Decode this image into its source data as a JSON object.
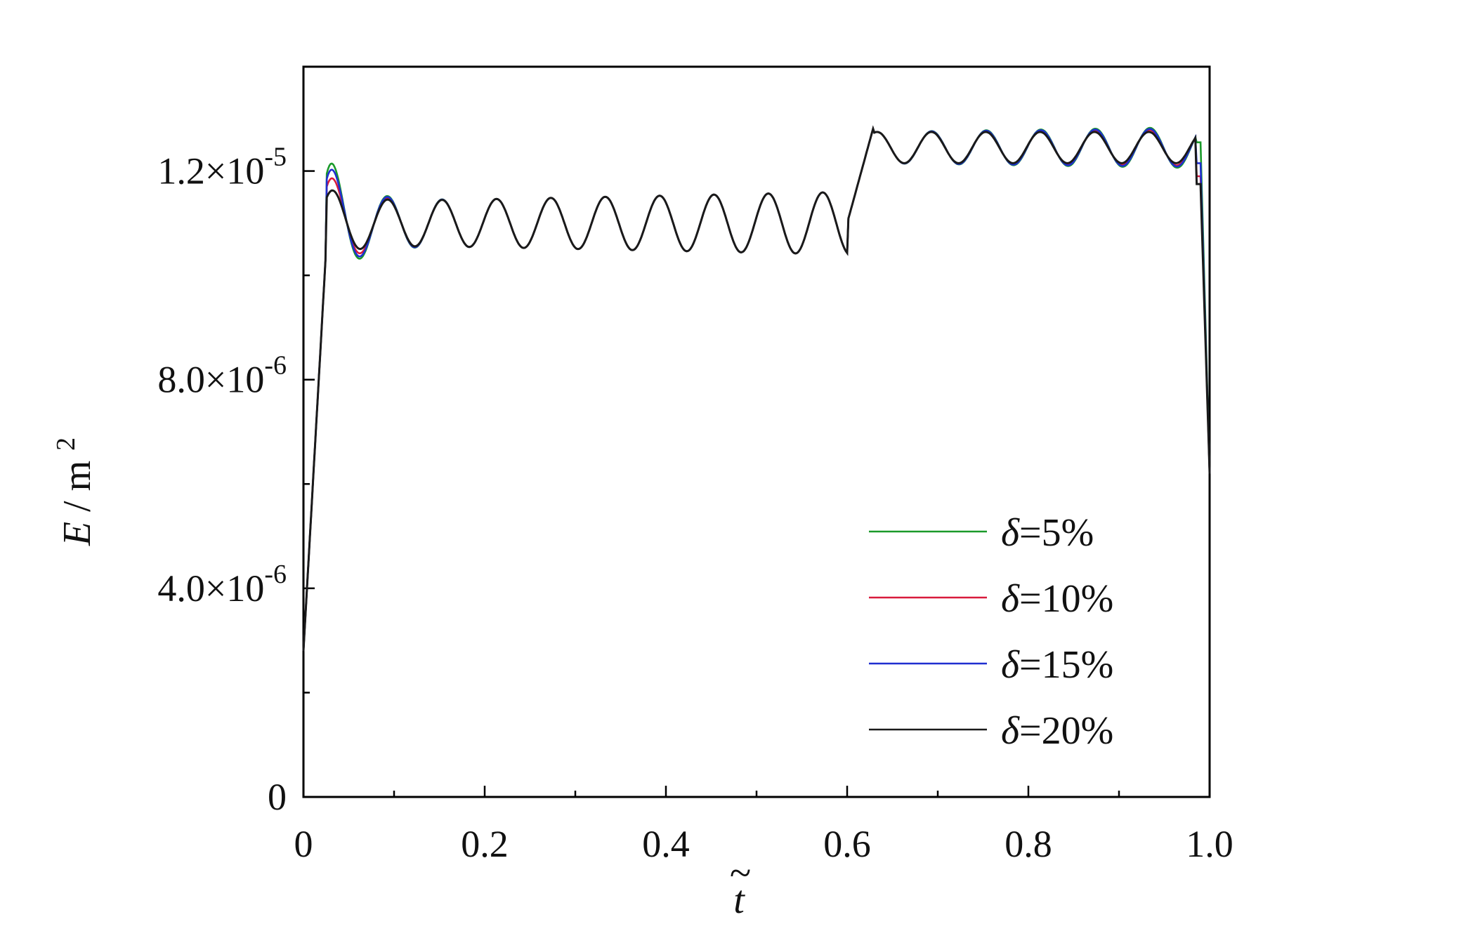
{
  "chart_data": {
    "type": "line",
    "xlabel": "t",
    "xlabel_accent": "~",
    "ylabel": "E",
    "ylabel_unit": "m",
    "ylabel_unit_exp": "2",
    "xlim": [
      0,
      1.0
    ],
    "ylim": [
      0,
      1.4e-05
    ],
    "grid": false,
    "legend_position": "bottom-right",
    "x_ticks": [
      {
        "value": 0,
        "label": "0"
      },
      {
        "value": 0.2,
        "label": "0.2"
      },
      {
        "value": 0.4,
        "label": "0.4"
      },
      {
        "value": 0.6,
        "label": "0.6"
      },
      {
        "value": 0.8,
        "label": "0.8"
      },
      {
        "value": 1.0,
        "label": "1.0"
      }
    ],
    "y_ticks": [
      {
        "value": 0,
        "mantissa": "0",
        "exp": ""
      },
      {
        "value": 4e-06,
        "mantissa": "4.0",
        "exp": "-6"
      },
      {
        "value": 8e-06,
        "mantissa": "8.0",
        "exp": "-6"
      },
      {
        "value": 1.2e-05,
        "mantissa": "1.2",
        "exp": "-5"
      }
    ],
    "y_times": "×10",
    "series": [
      {
        "name": "δ=5%",
        "color": "#1a9a2a",
        "init_amp": 0.45,
        "delta_amp": 0.4,
        "end_spike": 0.75
      },
      {
        "name": "δ=10%",
        "color": "#d81b3c",
        "init_amp": 0.28,
        "delta_amp": 0.2,
        "end_spike": 0.1
      },
      {
        "name": "δ=15%",
        "color": "#1f2fd0",
        "init_amp": 0.38,
        "delta_amp": 0.3,
        "end_spike": 0.35
      },
      {
        "name": "δ=20%",
        "color": "#1a1a1a",
        "init_amp": 0.14,
        "delta_amp": 0.0,
        "end_spike": -0.05
      }
    ]
  }
}
